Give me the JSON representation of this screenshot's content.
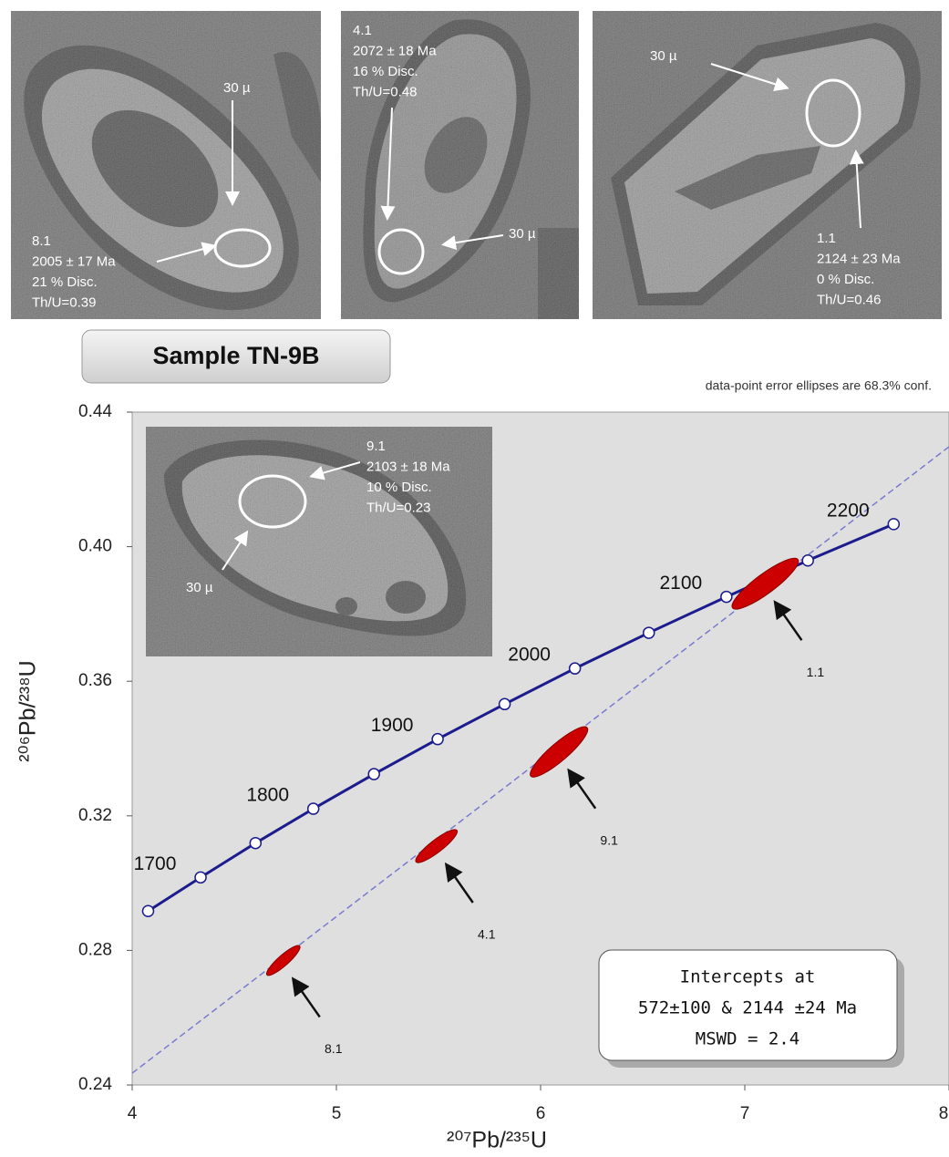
{
  "images": [
    {
      "spot_label": "30 µ",
      "lines": [
        "8.1",
        "2005 ± 17 Ma",
        "21 % Disc.",
        "Th/U=0.39"
      ]
    },
    {
      "spot_label": "30 µ",
      "lines": [
        "4.1",
        "2072 ± 18 Ma",
        "16 % Disc.",
        "Th/U=0.48"
      ]
    },
    {
      "spot_label": "30 µ",
      "lines": [
        "1.1",
        "2124 ± 23 Ma",
        "0 % Disc.",
        "Th/U=0.46"
      ]
    },
    {
      "spot_label": "30 µ",
      "lines": [
        "9.1",
        "2103 ± 18 Ma",
        "10 % Disc.",
        "Th/U=0.23"
      ]
    }
  ],
  "sample_label": "Sample TN-9B",
  "chart_data": {
    "type": "concordia",
    "note": "data-point error ellipses are 68.3% conf.",
    "xlabel": "²⁰⁷Pb/²³⁵U",
    "ylabel": "²⁰⁶Pb/²³⁸U",
    "xlim": [
      4,
      8
    ],
    "ylim": [
      0.24,
      0.44
    ],
    "xticks": [
      4,
      5,
      6,
      7,
      8
    ],
    "yticks": [
      0.24,
      0.28,
      0.32,
      0.36,
      {
        "value": 0.4,
        "label": "0.40"
      },
      0.44
    ],
    "concordia": {
      "color": "#1c1c8e",
      "x": [
        4.078,
        4.335,
        4.604,
        4.887,
        5.184,
        5.496,
        5.824,
        6.168,
        6.53,
        6.91,
        7.309,
        7.729
      ],
      "values": [
        0.2917,
        0.3017,
        0.3119,
        0.3221,
        0.3324,
        0.3428,
        0.3532,
        0.3638,
        0.3744,
        0.3851,
        0.3959,
        0.4067
      ],
      "age_labels": [
        null,
        1700,
        null,
        1800,
        null,
        1900,
        null,
        2000,
        null,
        2100,
        null,
        2200
      ]
    },
    "discordia": {
      "color": "#7a7ad0",
      "x": [
        4,
        8
      ],
      "values": [
        0.2435,
        0.4297
      ]
    },
    "ellipses": {
      "color": "#cc0000",
      "labels": [
        "8.1",
        "4.1",
        "9.1",
        "1.1"
      ],
      "x": [
        4.74,
        5.49,
        6.09,
        7.1
      ],
      "values": [
        0.277,
        0.311,
        0.339,
        0.389
      ],
      "x_err": [
        0.08,
        0.1,
        0.138,
        0.16
      ],
      "y_err": [
        0.0043,
        0.0047,
        0.0072,
        0.0072
      ]
    },
    "intercept_box": [
      "Intercepts at",
      "572±100 & 2144 ±24 Ma",
      "MSWD = 2.4"
    ]
  }
}
